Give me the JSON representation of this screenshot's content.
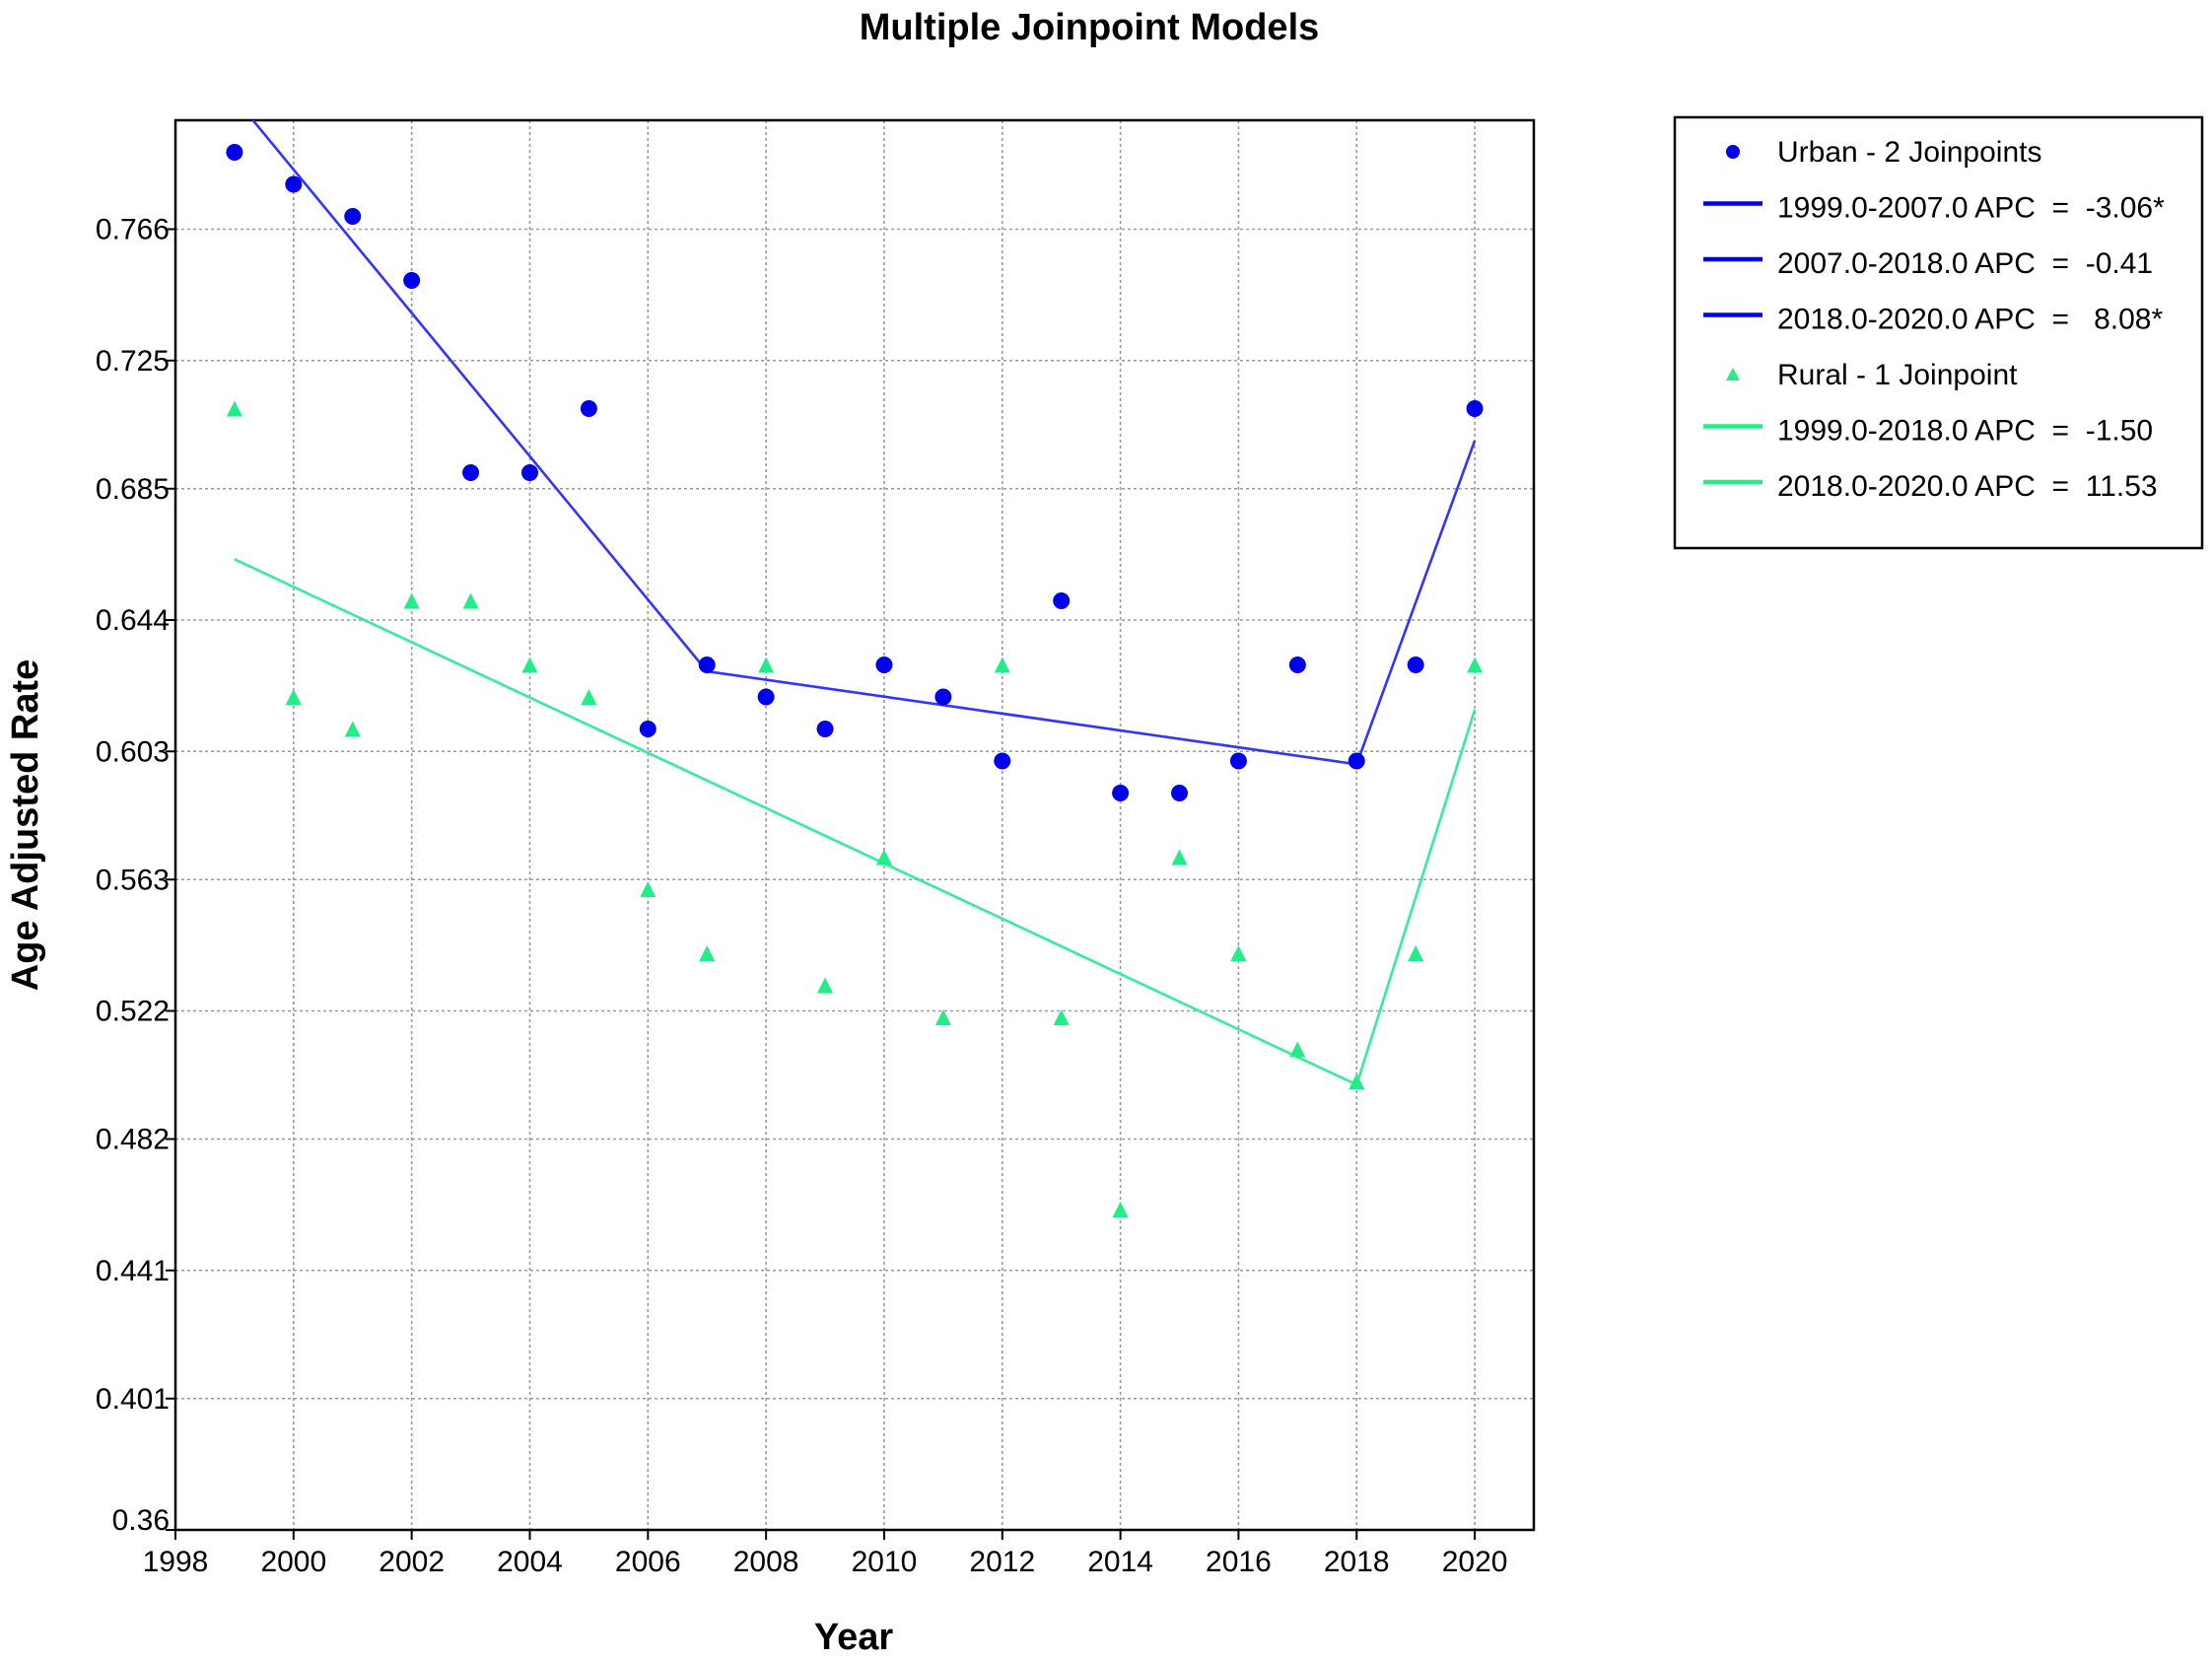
{
  "chart_data": {
    "type": "scatter",
    "title": "Multiple Joinpoint Models",
    "xlabel": "Year",
    "ylabel": "Age Adjusted Rate",
    "xlim": [
      1998,
      2021
    ],
    "ylim": [
      0.36,
      0.8
    ],
    "xticks": [
      "1998",
      "2000",
      "2002",
      "2004",
      "2006",
      "2008",
      "2010",
      "2012",
      "2014",
      "2016",
      "2018",
      "2020"
    ],
    "yticks": [
      "0.36",
      "0.401",
      "0.441",
      "0.482",
      "0.522",
      "0.563",
      "0.603",
      "0.644",
      "0.685",
      "0.725",
      "0.766"
    ],
    "grid": true,
    "legend_position": "outside-right-top",
    "series": [
      {
        "name": "Urban - 2 Joinpoints",
        "marker": "circle",
        "color": "#0000ee",
        "x": [
          1999,
          2000,
          2001,
          2002,
          2003,
          2004,
          2005,
          2006,
          2007,
          2008,
          2009,
          2010,
          2011,
          2012,
          2013,
          2014,
          2015,
          2016,
          2017,
          2018,
          2019,
          2020
        ],
        "y": [
          0.79,
          0.78,
          0.77,
          0.75,
          0.69,
          0.69,
          0.71,
          0.61,
          0.63,
          0.62,
          0.61,
          0.63,
          0.62,
          0.6,
          0.65,
          0.59,
          0.59,
          0.6,
          0.63,
          0.6,
          0.63,
          0.71
        ]
      },
      {
        "name": "Rural - 1 Joinpoint",
        "marker": "triangle",
        "color": "#22ee88",
        "x": [
          1999,
          2000,
          2001,
          2002,
          2003,
          2004,
          2005,
          2006,
          2007,
          2008,
          2009,
          2010,
          2011,
          2012,
          2013,
          2014,
          2015,
          2016,
          2017,
          2018,
          2019,
          2020
        ],
        "y": [
          0.71,
          0.62,
          0.61,
          0.65,
          0.65,
          0.63,
          0.62,
          0.56,
          0.54,
          0.63,
          0.53,
          0.57,
          0.52,
          0.63,
          0.52,
          0.46,
          0.57,
          0.54,
          0.51,
          0.5,
          0.54,
          0.63
        ]
      }
    ],
    "fitted_lines": [
      {
        "series": "Urban - 2 Joinpoints",
        "color": "#3333ff",
        "points": [
          [
            1999,
            0.807
          ],
          [
            2007,
            0.628
          ],
          [
            2018,
            0.599
          ],
          [
            2020,
            0.7
          ]
        ]
      },
      {
        "series": "Rural - 1 Joinpoint",
        "color": "#33ee99",
        "points": [
          [
            1999,
            0.663
          ],
          [
            2018,
            0.499
          ],
          [
            2020,
            0.616
          ]
        ]
      }
    ],
    "legend": [
      {
        "kind": "marker",
        "marker": "circle",
        "color": "#0000ee",
        "text": "Urban - 2 Joinpoints"
      },
      {
        "kind": "line",
        "color": "#0000ee",
        "text": "1999.0-2007.0 APC  =  -3.06*"
      },
      {
        "kind": "line",
        "color": "#0000ee",
        "text": "2007.0-2018.0 APC  =  -0.41"
      },
      {
        "kind": "line",
        "color": "#0000ee",
        "text": "2018.0-2020.0 APC  =   8.08*"
      },
      {
        "kind": "marker",
        "marker": "triangle",
        "color": "#22ee88",
        "text": "Rural - 1 Joinpoint"
      },
      {
        "kind": "line",
        "color": "#22ee88",
        "text": "1999.0-2018.0 APC  =  -1.50"
      },
      {
        "kind": "line",
        "color": "#22ee88",
        "text": "2018.0-2020.0 APC  =  11.53"
      }
    ]
  }
}
